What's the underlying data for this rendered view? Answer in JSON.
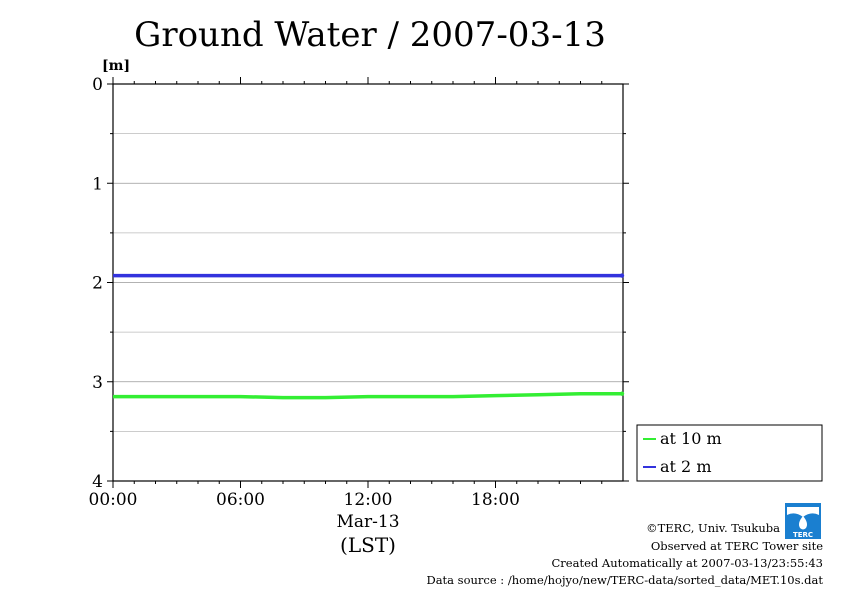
{
  "chart_data": {
    "type": "line",
    "title": "Ground Water / 2007-03-13",
    "y_unit": "[m]",
    "ylim": [
      0,
      4
    ],
    "y_inverted": true,
    "y_ticks": [
      0,
      1,
      2,
      3,
      4
    ],
    "y_minor_gridlines": [
      0.5,
      1.5,
      2.5,
      3.5
    ],
    "grid": true,
    "x_ticks": [
      "00:00",
      "06:00",
      "12:00",
      "18:00"
    ],
    "x_tick_hours": [
      0,
      6,
      12,
      18
    ],
    "xlim_hours": [
      0,
      24
    ],
    "date_label": "Mar-13",
    "xlabel": "(LST)",
    "legend_position": "right, below plot",
    "series": [
      {
        "name": "at 10 m",
        "color": "#33ee33",
        "x_hours": [
          0,
          2,
          4,
          6,
          8,
          10,
          12,
          14,
          16,
          18,
          20,
          22,
          24
        ],
        "values": [
          3.15,
          3.15,
          3.15,
          3.15,
          3.16,
          3.16,
          3.15,
          3.15,
          3.15,
          3.14,
          3.13,
          3.12,
          3.12
        ]
      },
      {
        "name": "at 2 m",
        "color": "#3333dd",
        "x_hours": [
          0,
          2,
          4,
          6,
          8,
          10,
          12,
          14,
          16,
          18,
          20,
          22,
          24
        ],
        "values": [
          1.93,
          1.93,
          1.93,
          1.93,
          1.93,
          1.93,
          1.93,
          1.93,
          1.93,
          1.93,
          1.93,
          1.93,
          1.93
        ]
      }
    ]
  },
  "footer": {
    "copyright": "©TERC, Univ. Tsukuba",
    "observed": "Observed at TERC Tower site",
    "created": "Created Automatically at 2007-03-13/23:55:43",
    "source": "Data source : /home/hojyo/new/TERC-data/sorted_data/MET.10s.dat",
    "logo_text": "TERC"
  }
}
